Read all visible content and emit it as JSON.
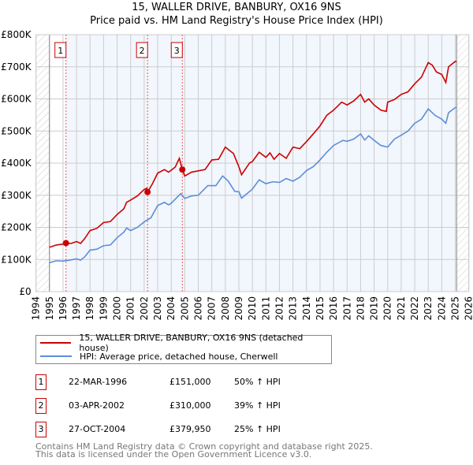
{
  "title": "15, WALLER DRIVE, BANBURY, OX16 9NS",
  "subtitle": "Price paid vs. HM Land Registry's House Price Index (HPI)",
  "chart_data": {
    "type": "line",
    "title": "15, WALLER DRIVE, BANBURY, OX16 9NS",
    "subtitle": "Price paid vs. HM Land Registry's House Price Index (HPI)",
    "xlim": [
      1994,
      2026
    ],
    "ylim": [
      0,
      800000
    ],
    "x_ticks": [
      "1994",
      "1995",
      "1996",
      "1997",
      "1998",
      "1999",
      "2000",
      "2001",
      "2002",
      "2003",
      "2004",
      "2005",
      "2006",
      "2007",
      "2008",
      "2009",
      "2010",
      "2011",
      "2012",
      "2013",
      "2014",
      "2015",
      "2016",
      "2017",
      "2018",
      "2019",
      "2020",
      "2021",
      "2022",
      "2023",
      "2024",
      "2025",
      "2026"
    ],
    "y_ticks": [
      {
        "v": 0,
        "label": "£0"
      },
      {
        "v": 100000,
        "label": "£100K"
      },
      {
        "v": 200000,
        "label": "£200K"
      },
      {
        "v": 300000,
        "label": "£300K"
      },
      {
        "v": 400000,
        "label": "£400K"
      },
      {
        "v": 500000,
        "label": "£500K"
      },
      {
        "v": 600000,
        "label": "£600K"
      },
      {
        "v": 700000,
        "label": "£700K"
      },
      {
        "v": 800000,
        "label": "£800K"
      }
    ],
    "grid": true,
    "data_range": [
      1995,
      2025.1
    ],
    "series": [
      {
        "name": "15, WALLER DRIVE, BANBURY, OX16 9NS (detached house)",
        "color": "#cc0000",
        "points": [
          [
            1995,
            138
          ],
          [
            1995.5,
            145
          ],
          [
            1996,
            148
          ],
          [
            1996.22,
            151
          ],
          [
            1996.6,
            150
          ],
          [
            1997,
            156
          ],
          [
            1997.3,
            150
          ],
          [
            1997.6,
            165
          ],
          [
            1998,
            190
          ],
          [
            1998.5,
            197
          ],
          [
            1999,
            215
          ],
          [
            1999.5,
            218
          ],
          [
            2000,
            240
          ],
          [
            2000.5,
            258
          ],
          [
            2000.7,
            278
          ],
          [
            2001,
            285
          ],
          [
            2001.5,
            298
          ],
          [
            2002,
            318
          ],
          [
            2002.2,
            322
          ],
          [
            2002.25,
            310
          ],
          [
            2002.6,
            335
          ],
          [
            2003,
            369
          ],
          [
            2003.5,
            380
          ],
          [
            2003.8,
            372
          ],
          [
            2004,
            378
          ],
          [
            2004.3,
            388
          ],
          [
            2004.6,
            415
          ],
          [
            2004.82,
            380
          ],
          [
            2005,
            360
          ],
          [
            2005.5,
            372
          ],
          [
            2006,
            376
          ],
          [
            2006.5,
            380
          ],
          [
            2007,
            410
          ],
          [
            2007.5,
            412
          ],
          [
            2008,
            450
          ],
          [
            2008.3,
            440
          ],
          [
            2008.6,
            430
          ],
          [
            2009,
            389
          ],
          [
            2009.2,
            364
          ],
          [
            2009.8,
            401
          ],
          [
            2010,
            405
          ],
          [
            2010.5,
            434
          ],
          [
            2011,
            418
          ],
          [
            2011.3,
            432
          ],
          [
            2011.6,
            412
          ],
          [
            2012,
            430
          ],
          [
            2012.5,
            415
          ],
          [
            2013,
            450
          ],
          [
            2013.5,
            445
          ],
          [
            2014,
            467
          ],
          [
            2014.5,
            491
          ],
          [
            2015,
            516
          ],
          [
            2015.5,
            549
          ],
          [
            2016,
            565
          ],
          [
            2016.6,
            590
          ],
          [
            2017,
            581
          ],
          [
            2017.5,
            594
          ],
          [
            2018,
            614
          ],
          [
            2018.3,
            590
          ],
          [
            2018.6,
            600
          ],
          [
            2019,
            581
          ],
          [
            2019.5,
            565
          ],
          [
            2019.9,
            561
          ],
          [
            2020,
            590
          ],
          [
            2020.5,
            598
          ],
          [
            2021,
            614
          ],
          [
            2021.5,
            622
          ],
          [
            2022,
            647
          ],
          [
            2022.5,
            668
          ],
          [
            2023,
            713
          ],
          [
            2023.3,
            705
          ],
          [
            2023.6,
            684
          ],
          [
            2024,
            676
          ],
          [
            2024.3,
            651
          ],
          [
            2024.5,
            700
          ],
          [
            2025,
            717
          ],
          [
            2025.1,
            716
          ]
        ]
      },
      {
        "name": "HPI: Average price, detached house, Cherwell",
        "color": "#5b8fd6",
        "points": [
          [
            1995,
            90
          ],
          [
            1995.5,
            96
          ],
          [
            1996,
            95
          ],
          [
            1996.5,
            98
          ],
          [
            1997,
            102
          ],
          [
            1997.3,
            98
          ],
          [
            1997.6,
            108
          ],
          [
            1998,
            129
          ],
          [
            1998.5,
            132
          ],
          [
            1999,
            143
          ],
          [
            1999.5,
            145
          ],
          [
            2000,
            168
          ],
          [
            2000.5,
            185
          ],
          [
            2000.7,
            198
          ],
          [
            2001,
            190
          ],
          [
            2001.5,
            200
          ],
          [
            2002,
            217
          ],
          [
            2002.5,
            230
          ],
          [
            2003,
            268
          ],
          [
            2003.5,
            278
          ],
          [
            2003.8,
            270
          ],
          [
            2004,
            275
          ],
          [
            2004.7,
            305
          ],
          [
            2005,
            290
          ],
          [
            2005.5,
            298
          ],
          [
            2006,
            300
          ],
          [
            2006.7,
            330
          ],
          [
            2007.3,
            330
          ],
          [
            2007.8,
            360
          ],
          [
            2008.2,
            345
          ],
          [
            2008.7,
            312
          ],
          [
            2009,
            311
          ],
          [
            2009.2,
            291
          ],
          [
            2010,
            319
          ],
          [
            2010.5,
            348
          ],
          [
            2011,
            336
          ],
          [
            2011.5,
            342
          ],
          [
            2012,
            340
          ],
          [
            2012.5,
            352
          ],
          [
            2013,
            344
          ],
          [
            2013.5,
            356
          ],
          [
            2014,
            377
          ],
          [
            2014.5,
            389
          ],
          [
            2015,
            410
          ],
          [
            2015.5,
            434
          ],
          [
            2016,
            455
          ],
          [
            2016.7,
            471
          ],
          [
            2017,
            468
          ],
          [
            2017.5,
            475
          ],
          [
            2018,
            491
          ],
          [
            2018.3,
            472
          ],
          [
            2018.6,
            485
          ],
          [
            2019,
            471
          ],
          [
            2019.5,
            455
          ],
          [
            2020,
            450
          ],
          [
            2020.5,
            475
          ],
          [
            2021,
            487
          ],
          [
            2021.5,
            500
          ],
          [
            2022,
            524
          ],
          [
            2022.5,
            537
          ],
          [
            2023,
            569
          ],
          [
            2023.5,
            549
          ],
          [
            2024,
            537
          ],
          [
            2024.3,
            524
          ],
          [
            2024.5,
            557
          ],
          [
            2025,
            573
          ],
          [
            2025.1,
            573
          ]
        ]
      }
    ],
    "units_note": "point y values in £ thousands",
    "sales": [
      {
        "n": "1",
        "x": 1996.22,
        "price": 151000
      },
      {
        "n": "2",
        "x": 2002.25,
        "price": 310000
      },
      {
        "n": "3",
        "x": 2004.82,
        "price": 379950
      }
    ]
  },
  "legend": {
    "property": "15, WALLER DRIVE, BANBURY, OX16 9NS (detached house)",
    "hpi": "HPI: Average price, detached house, Cherwell"
  },
  "transactions": [
    {
      "n": "1",
      "date": "22-MAR-1996",
      "price": "£151,000",
      "hpi": "50% ↑ HPI"
    },
    {
      "n": "2",
      "date": "03-APR-2002",
      "price": "£310,000",
      "hpi": "39% ↑ HPI"
    },
    {
      "n": "3",
      "date": "27-OCT-2004",
      "price": "£379,950",
      "hpi": "25% ↑ HPI"
    }
  ],
  "footer": {
    "line1": "Contains HM Land Registry data © Crown copyright and database right 2025.",
    "line2": "This data is licensed under the Open Government Licence v3.0."
  }
}
